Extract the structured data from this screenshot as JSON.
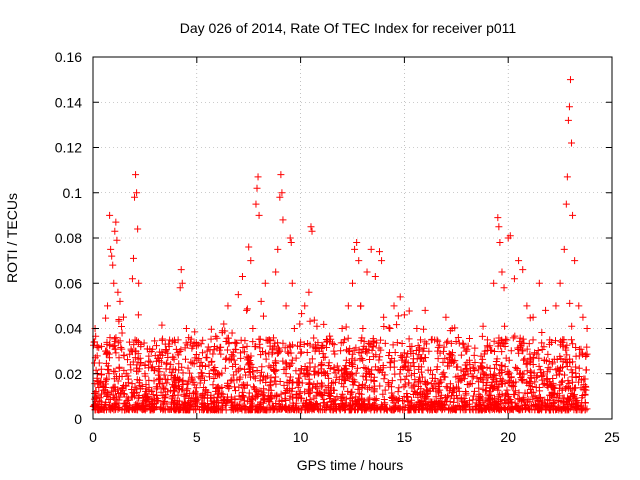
{
  "chart_data": {
    "type": "scatter",
    "title": "Day 026 of 2014, Rate Of TEC Index for receiver p011",
    "xlabel": "GPS time / hours",
    "ylabel": "ROTI / TECUs",
    "xlim": [
      0,
      25
    ],
    "ylim": [
      0,
      0.16
    ],
    "xticks": [
      0,
      5,
      10,
      15,
      20,
      25
    ],
    "yticks": [
      0,
      0.02,
      0.04,
      0.06,
      0.08,
      0.1,
      0.12,
      0.14,
      0.16
    ],
    "xtick_labels": [
      "0",
      "5",
      "10",
      "15",
      "20",
      "25"
    ],
    "ytick_labels": [
      "0",
      "0.02",
      "0.04",
      "0.06",
      "0.08",
      "0.1",
      "0.12",
      "0.14",
      "0.16"
    ],
    "grid": true,
    "marker": "+",
    "color": "#ff0000",
    "series": [
      {
        "name": "ROTI",
        "points": [
          [
            0.05,
            0.034
          ],
          [
            0.1,
            0.04
          ],
          [
            0.15,
            0.012
          ],
          [
            0.2,
            0.018
          ],
          [
            0.3,
            0.008
          ],
          [
            0.4,
            0.022
          ],
          [
            0.5,
            0.014
          ],
          [
            0.6,
            0.03
          ],
          [
            0.7,
            0.05
          ],
          [
            0.8,
            0.09
          ],
          [
            0.85,
            0.075
          ],
          [
            0.9,
            0.072
          ],
          [
            0.95,
            0.068
          ],
          [
            1.0,
            0.06
          ],
          [
            1.05,
            0.083
          ],
          [
            1.1,
            0.087
          ],
          [
            1.15,
            0.079
          ],
          [
            1.2,
            0.056
          ],
          [
            1.25,
            0.044
          ],
          [
            1.3,
            0.052
          ],
          [
            1.4,
            0.038
          ],
          [
            1.5,
            0.028
          ],
          [
            1.6,
            0.02
          ],
          [
            1.7,
            0.016
          ],
          [
            1.8,
            0.024
          ],
          [
            1.9,
            0.062
          ],
          [
            1.95,
            0.071
          ],
          [
            2.0,
            0.098
          ],
          [
            2.05,
            0.108
          ],
          [
            2.1,
            0.1
          ],
          [
            2.15,
            0.084
          ],
          [
            2.2,
            0.06
          ],
          [
            2.3,
            0.032
          ],
          [
            2.5,
            0.02
          ],
          [
            2.7,
            0.014
          ],
          [
            3.0,
            0.028
          ],
          [
            3.2,
            0.018
          ],
          [
            3.5,
            0.03
          ],
          [
            3.7,
            0.022
          ],
          [
            4.0,
            0.016
          ],
          [
            4.1,
            0.035
          ],
          [
            4.2,
            0.058
          ],
          [
            4.25,
            0.066
          ],
          [
            4.3,
            0.06
          ],
          [
            4.5,
            0.04
          ],
          [
            4.7,
            0.034
          ],
          [
            5.0,
            0.026
          ],
          [
            5.2,
            0.018
          ],
          [
            5.5,
            0.03
          ],
          [
            5.8,
            0.022
          ],
          [
            6.0,
            0.014
          ],
          [
            6.3,
            0.042
          ],
          [
            6.5,
            0.05
          ],
          [
            6.7,
            0.038
          ],
          [
            6.8,
            0.026
          ],
          [
            7.0,
            0.055
          ],
          [
            7.2,
            0.063
          ],
          [
            7.4,
            0.048
          ],
          [
            7.5,
            0.076
          ],
          [
            7.6,
            0.07
          ],
          [
            7.7,
            0.04
          ],
          [
            7.8,
            0.032
          ],
          [
            7.85,
            0.095
          ],
          [
            7.9,
            0.102
          ],
          [
            7.95,
            0.107
          ],
          [
            8.0,
            0.09
          ],
          [
            8.1,
            0.052
          ],
          [
            8.3,
            0.06
          ],
          [
            8.5,
            0.035
          ],
          [
            8.8,
            0.065
          ],
          [
            8.9,
            0.075
          ],
          [
            9.0,
            0.098
          ],
          [
            9.05,
            0.108
          ],
          [
            9.1,
            0.1
          ],
          [
            9.15,
            0.088
          ],
          [
            9.3,
            0.05
          ],
          [
            9.5,
            0.08
          ],
          [
            9.55,
            0.078
          ],
          [
            9.6,
            0.06
          ],
          [
            9.7,
            0.04
          ],
          [
            10.0,
            0.034
          ],
          [
            10.2,
            0.05
          ],
          [
            10.4,
            0.056
          ],
          [
            10.5,
            0.085
          ],
          [
            10.55,
            0.083
          ],
          [
            10.7,
            0.03
          ],
          [
            11.0,
            0.024
          ],
          [
            11.3,
            0.02
          ],
          [
            11.6,
            0.03
          ],
          [
            12.0,
            0.04
          ],
          [
            12.3,
            0.05
          ],
          [
            12.5,
            0.06
          ],
          [
            12.6,
            0.075
          ],
          [
            12.7,
            0.078
          ],
          [
            12.8,
            0.07
          ],
          [
            12.9,
            0.05
          ],
          [
            13.0,
            0.04
          ],
          [
            13.2,
            0.065
          ],
          [
            13.4,
            0.075
          ],
          [
            13.6,
            0.063
          ],
          [
            13.8,
            0.074
          ],
          [
            13.9,
            0.07
          ],
          [
            14.0,
            0.045
          ],
          [
            14.3,
            0.04
          ],
          [
            14.5,
            0.05
          ],
          [
            14.8,
            0.054
          ],
          [
            15.0,
            0.046
          ],
          [
            15.3,
            0.03
          ],
          [
            15.6,
            0.04
          ],
          [
            16.0,
            0.048
          ],
          [
            16.3,
            0.035
          ],
          [
            16.6,
            0.03
          ],
          [
            17.0,
            0.045
          ],
          [
            17.3,
            0.04
          ],
          [
            17.6,
            0.036
          ],
          [
            18.0,
            0.03
          ],
          [
            18.4,
            0.025
          ],
          [
            18.8,
            0.02
          ],
          [
            19.0,
            0.035
          ],
          [
            19.3,
            0.06
          ],
          [
            19.5,
            0.089
          ],
          [
            19.55,
            0.085
          ],
          [
            19.6,
            0.078
          ],
          [
            19.7,
            0.065
          ],
          [
            19.8,
            0.058
          ],
          [
            20.0,
            0.08
          ],
          [
            20.1,
            0.081
          ],
          [
            20.3,
            0.062
          ],
          [
            20.5,
            0.07
          ],
          [
            20.7,
            0.066
          ],
          [
            20.9,
            0.05
          ],
          [
            21.2,
            0.045
          ],
          [
            21.5,
            0.06
          ],
          [
            21.8,
            0.048
          ],
          [
            22.0,
            0.035
          ],
          [
            22.3,
            0.05
          ],
          [
            22.5,
            0.06
          ],
          [
            22.7,
            0.075
          ],
          [
            22.8,
            0.095
          ],
          [
            22.85,
            0.107
          ],
          [
            22.9,
            0.132
          ],
          [
            22.95,
            0.138
          ],
          [
            23.0,
            0.15
          ],
          [
            23.05,
            0.122
          ],
          [
            23.1,
            0.09
          ],
          [
            23.2,
            0.07
          ],
          [
            23.4,
            0.05
          ],
          [
            23.6,
            0.045
          ],
          [
            23.8,
            0.04
          ]
        ]
      }
    ]
  }
}
